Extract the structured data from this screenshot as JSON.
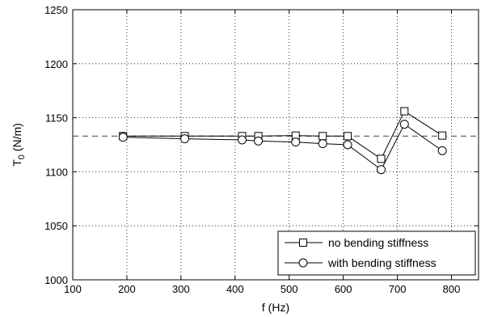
{
  "chart_data": {
    "type": "line",
    "title": "",
    "xlabel": "f (Hz)",
    "ylabel_main": "T",
    "ylabel_sub": "0",
    "ylabel_unit": " (N/m)",
    "xlim": [
      100,
      850
    ],
    "ylim": [
      1000,
      1250
    ],
    "xticks": [
      100,
      200,
      300,
      400,
      500,
      600,
      700,
      800
    ],
    "yticks": [
      1000,
      1050,
      1100,
      1150,
      1200,
      1250
    ],
    "grid": true,
    "reference_line": {
      "y": 1133,
      "style": "dashed"
    },
    "legend_position": "bottom-right",
    "series": [
      {
        "name": "no bending stiffness",
        "marker": "square",
        "x": [
          193,
          307,
          413,
          443,
          512,
          562,
          608,
          670,
          713,
          783
        ],
        "y": [
          1133,
          1133,
          1133,
          1133,
          1133.5,
          1133,
          1133,
          1112,
          1156,
          1133.5
        ]
      },
      {
        "name": "with bending stiffness",
        "marker": "circle",
        "x": [
          193,
          307,
          413,
          443,
          512,
          562,
          608,
          670,
          713,
          783
        ],
        "y": [
          1132,
          1130.5,
          1129.5,
          1128.5,
          1127.5,
          1126,
          1125,
          1102,
          1144,
          1119.5
        ]
      }
    ]
  }
}
